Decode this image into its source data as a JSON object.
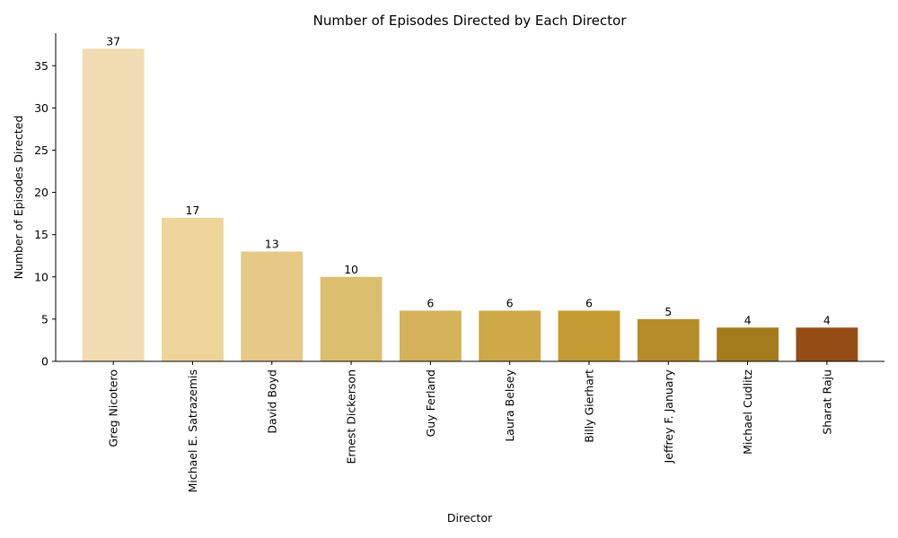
{
  "chart_data": {
    "type": "bar",
    "title": "Number of Episodes Directed by Each Director",
    "xlabel": "Director",
    "ylabel": "Number of Episodes Directed",
    "categories": [
      "Greg Nicotero",
      "Michael E. Satrazemis",
      "David Boyd",
      "Ernest Dickerson",
      "Guy Ferland",
      "Laura Belsey",
      "Billy Gierhart",
      "Jeffrey F. January",
      "Michael Cudlitz",
      "Sharat Raju"
    ],
    "values": [
      37,
      17,
      13,
      10,
      6,
      6,
      6,
      5,
      4,
      4
    ],
    "colors": [
      "#f0dcb0",
      "#edd49a",
      "#e6c987",
      "#dcbf6e",
      "#d6b25a",
      "#cfa847",
      "#c49b33",
      "#b58c28",
      "#a47c1e",
      "#964d15"
    ],
    "ylim": [
      0,
      38.85
    ],
    "yticks": [
      0,
      5,
      10,
      15,
      20,
      25,
      30,
      35
    ],
    "grid": false,
    "legend": "none"
  }
}
